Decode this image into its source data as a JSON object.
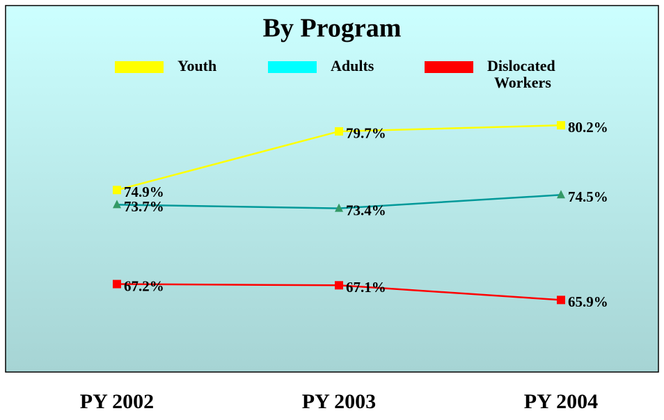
{
  "chart_data": {
    "type": "line",
    "title": "By Program",
    "categories": [
      "PY 2002",
      "PY 2003",
      "PY 2004"
    ],
    "ylim": [
      60,
      90
    ],
    "series": [
      {
        "name": "Youth",
        "color": "#ffff00",
        "legend_color": "#ffff00",
        "marker": "square",
        "values": [
          74.9,
          79.7,
          80.2
        ],
        "value_labels": [
          "74.9%",
          "79.7%",
          "80.2%"
        ]
      },
      {
        "name": "Adults",
        "color": "#009999",
        "legend_color": "#00ffff",
        "marker": "triangle",
        "marker_color": "#339966",
        "values": [
          73.7,
          73.4,
          74.5
        ],
        "value_labels": [
          "73.7%",
          "73.4%",
          "74.5%"
        ]
      },
      {
        "name": "Dislocated Workers",
        "color": "#ff0000",
        "legend_color": "#ff0000",
        "marker": "square",
        "values": [
          67.2,
          67.1,
          65.9
        ],
        "value_labels": [
          "67.2%",
          "67.1%",
          "65.9%"
        ]
      }
    ]
  }
}
